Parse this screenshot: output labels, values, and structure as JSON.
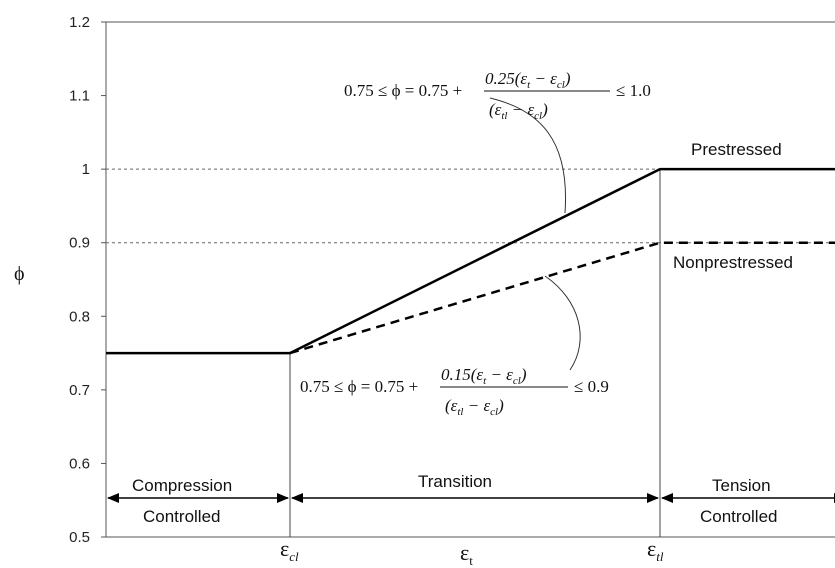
{
  "chart_data": {
    "type": "line",
    "ylabel": "ϕ",
    "xlabel": "ε",
    "xlabel_sub": "t",
    "x": [
      "ε_cl",
      "ε_tl"
    ],
    "x_tick_labels": [
      {
        "main": "ε",
        "sub": "cl"
      },
      {
        "main": "ε",
        "sub": "tl"
      }
    ],
    "ylim": [
      0.5,
      1.2
    ],
    "yticks": [
      "0.5",
      "0.6",
      "0.7",
      "0.8",
      "0.9",
      "1",
      "1.1",
      "1.2"
    ],
    "gridlines": [
      0.9,
      1.0
    ],
    "series": [
      {
        "name": "Prestressed",
        "style": "solid",
        "points": [
          {
            "x": "start",
            "y": 0.75
          },
          {
            "x": "ε_cl",
            "y": 0.75
          },
          {
            "x": "ε_tl",
            "y": 1.0
          },
          {
            "x": "end",
            "y": 1.0
          }
        ]
      },
      {
        "name": "Nonprestressed",
        "style": "dashed",
        "points": [
          {
            "x": "ε_cl",
            "y": 0.75
          },
          {
            "x": "ε_tl",
            "y": 0.9
          },
          {
            "x": "end",
            "y": 0.9
          }
        ]
      }
    ],
    "regions": [
      {
        "line1": "Compression",
        "line2": "Controlled"
      },
      {
        "line1": "Transition",
        "line2": ""
      },
      {
        "line1": "Tension",
        "line2": "Controlled"
      }
    ],
    "equations": [
      {
        "lhs": "0.75 ≤ ϕ = 0.75 +",
        "numerator": "0.25(ε",
        "num_mid": " − ε",
        "num_end": ")",
        "denominator": "(ε",
        "den_mid": " − ε",
        "den_end": ")",
        "rhs": "≤ 1.0"
      },
      {
        "lhs": "0.75 ≤ ϕ = 0.75 +",
        "numerator": "0.15(ε",
        "num_mid": " − ε",
        "num_end": ")",
        "denominator": "(ε",
        "den_mid": " − ε",
        "den_end": ")",
        "rhs": "≤ 0.9"
      }
    ],
    "subscripts": {
      "t": "t",
      "cl": "cl",
      "tl": "tl"
    }
  }
}
